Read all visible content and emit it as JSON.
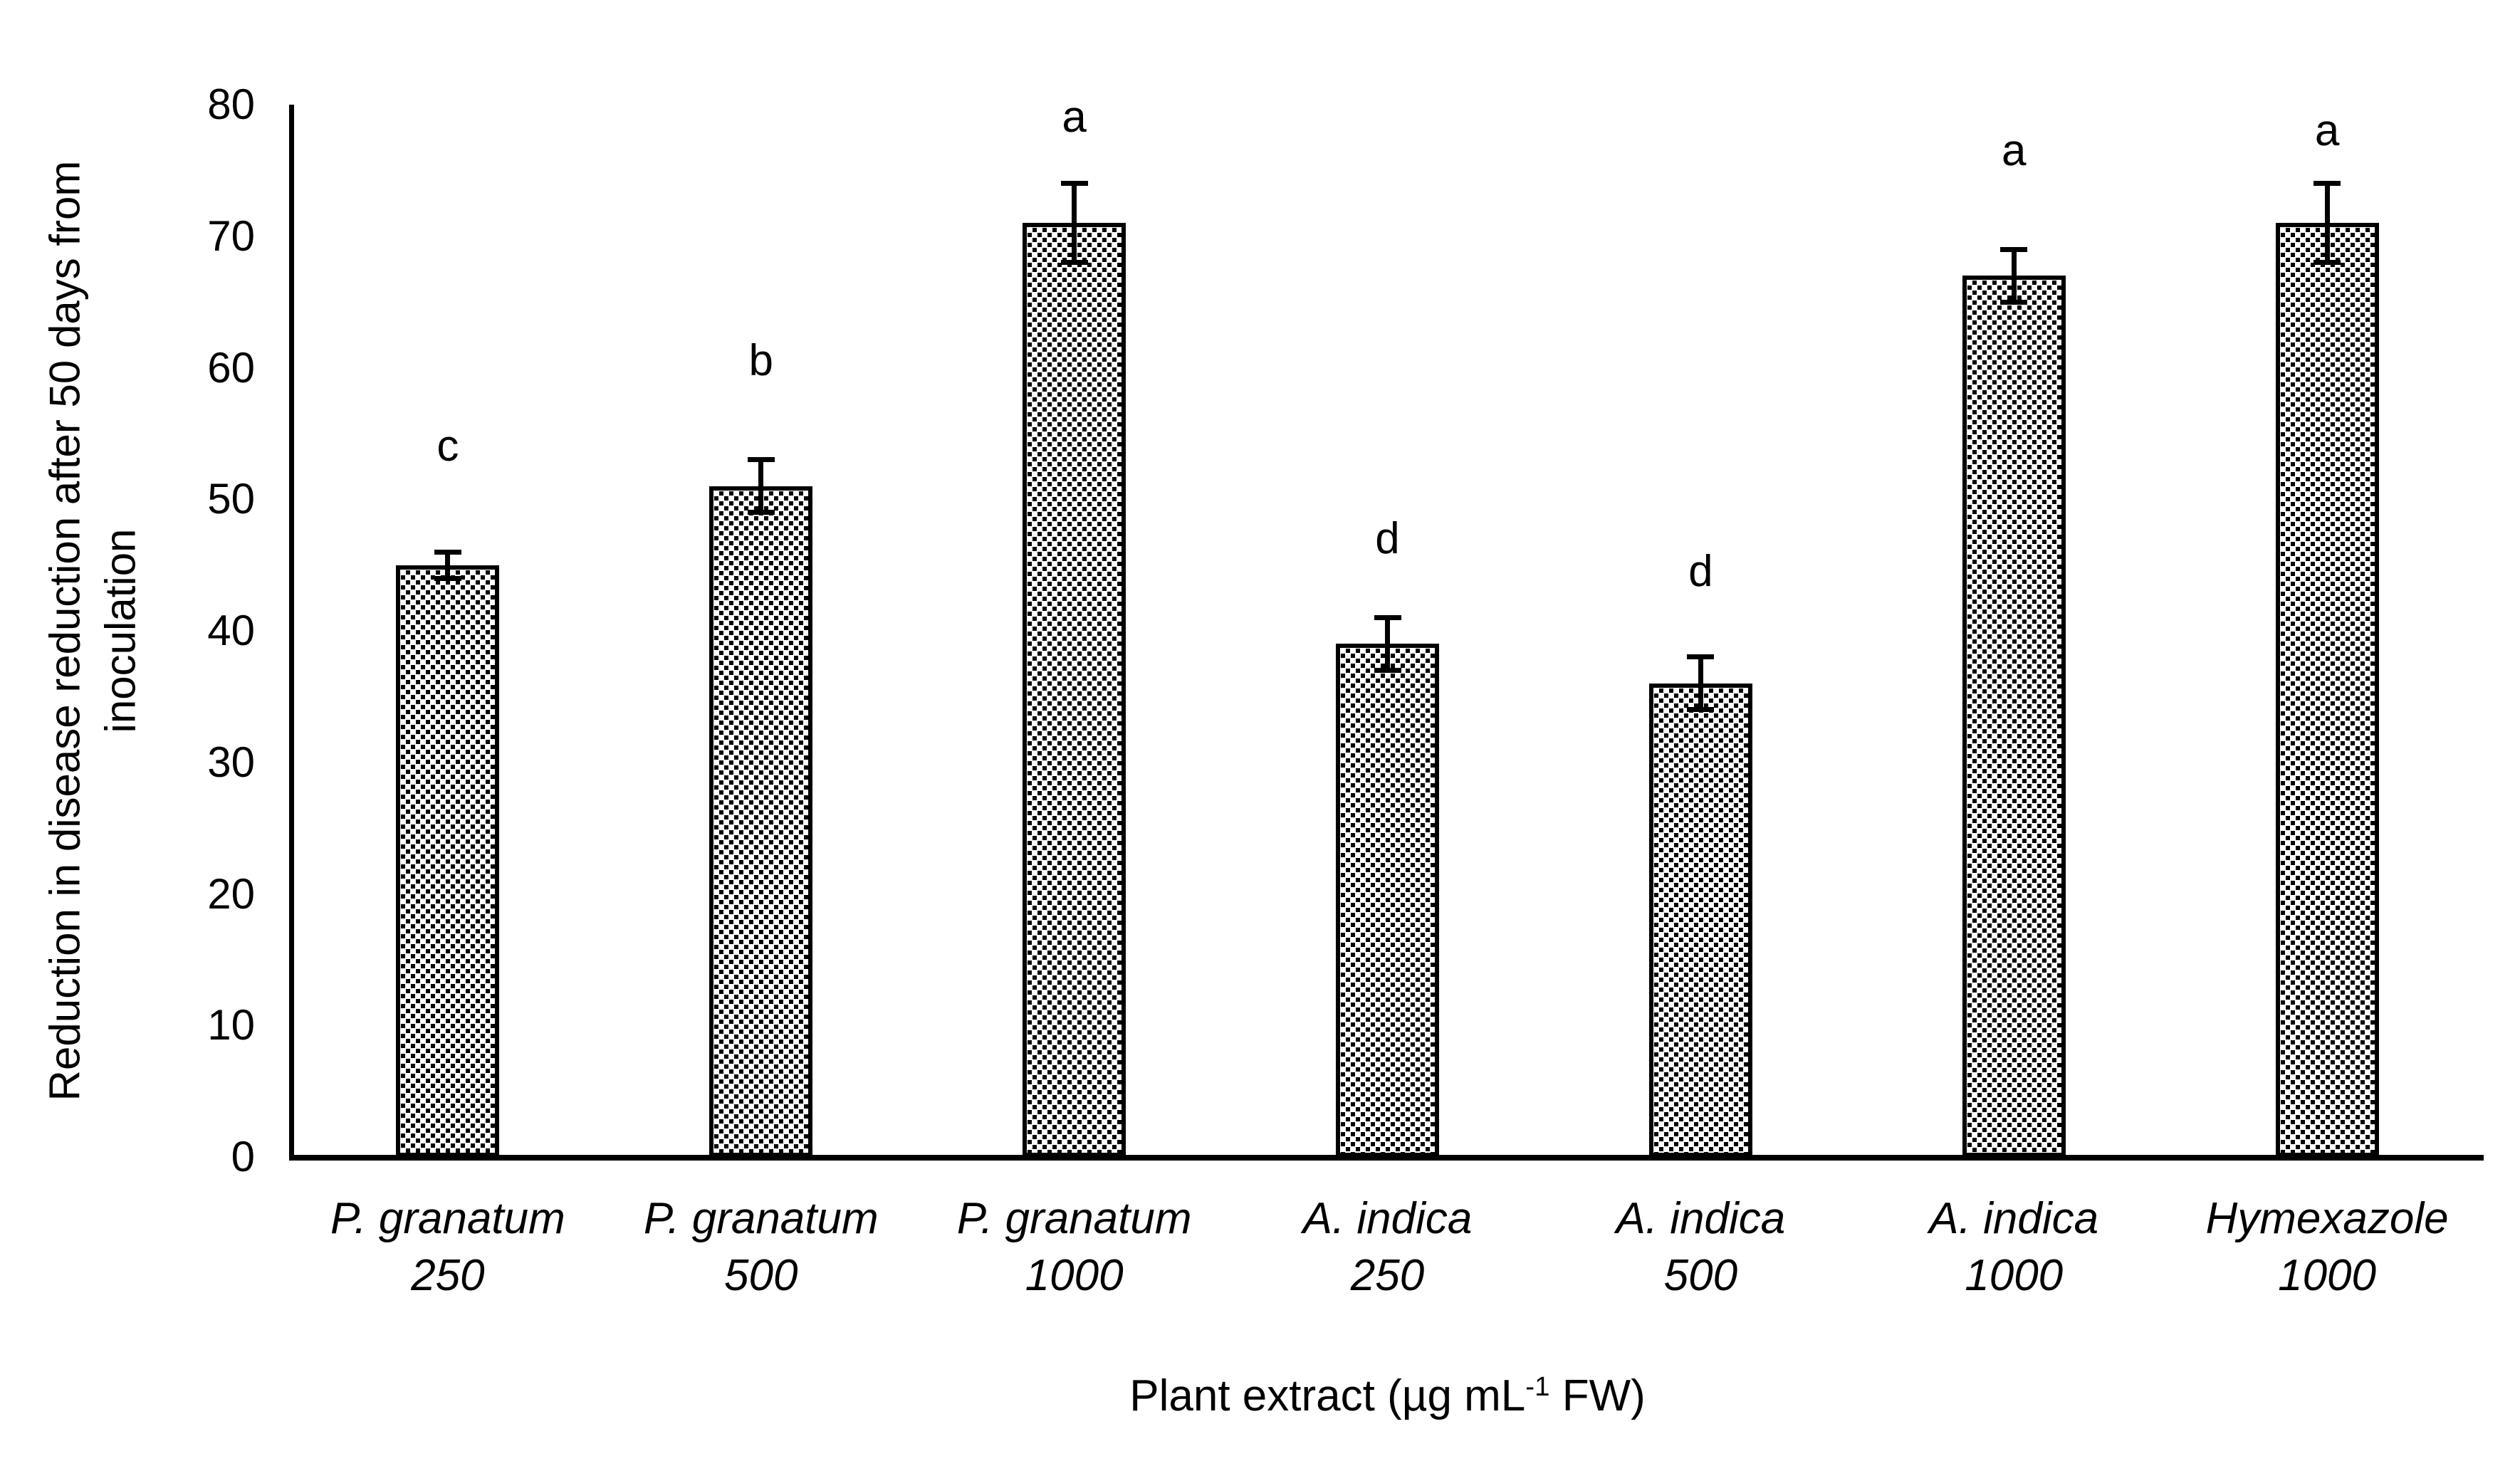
{
  "chart_data": {
    "type": "bar",
    "title": "",
    "ylabel": "Reduction in disease reduction  after 50 days from inoculation",
    "ylabel_lines": [
      "Reduction in disease reduction  after 50 days from",
      "inoculation"
    ],
    "xlabel_parts": [
      "Plant extract (µg mL",
      "-1",
      " FW)"
    ],
    "xlabel_plain": "Plant extract (µg mL-1 FW)",
    "ylim": [
      0,
      80
    ],
    "yticks": [
      0,
      10,
      20,
      30,
      40,
      50,
      60,
      70,
      80
    ],
    "grid": false,
    "legend": "none",
    "bar_fill": "black-white-checkerboard-pattern",
    "colors": {
      "ink": "#000000",
      "background": "#ffffff"
    },
    "categories": [
      {
        "species": "P. granatum",
        "dose": "250"
      },
      {
        "species": "P. granatum",
        "dose": "500"
      },
      {
        "species": "P. granatum",
        "dose": "1000"
      },
      {
        "species": "A. indica",
        "dose": "250"
      },
      {
        "species": "A. indica",
        "dose": "500"
      },
      {
        "species": "A. indica",
        "dose": "1000"
      },
      {
        "species": "Hymexazole",
        "dose": "1000"
      }
    ],
    "values": [
      45,
      51,
      71,
      39,
      36,
      67,
      71
    ],
    "error_bars": [
      1,
      2,
      3,
      2,
      2,
      2,
      3
    ],
    "sig_letters": [
      "c",
      "b",
      "a",
      "d",
      "d",
      "a",
      "a"
    ],
    "sig_letter_y": [
      54,
      60.5,
      79,
      47,
      44.5,
      76.5,
      78
    ]
  }
}
